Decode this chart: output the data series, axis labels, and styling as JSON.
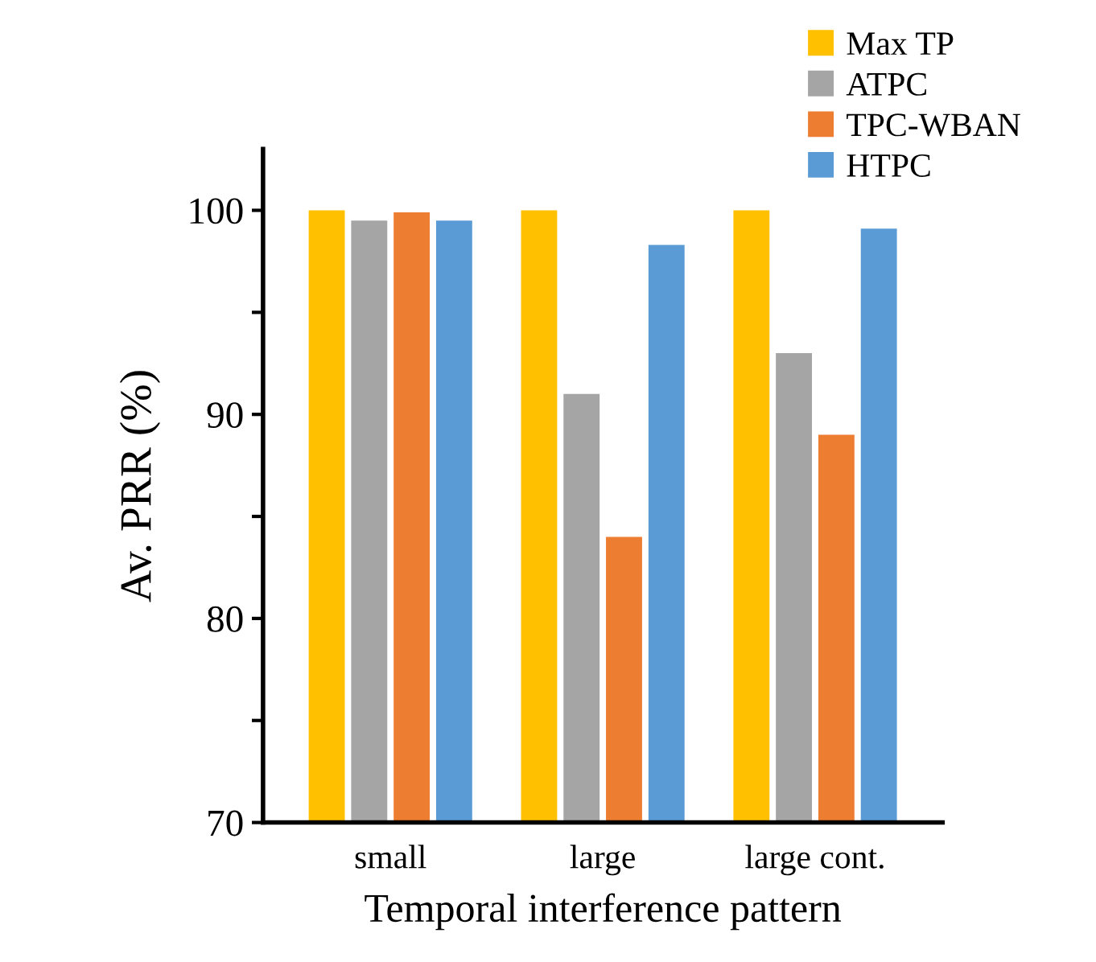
{
  "chart_data": {
    "type": "bar",
    "xlabel": "Temporal interference pattern",
    "ylabel": "Av. PRR (%)",
    "categories": [
      "small",
      "large",
      "large cont."
    ],
    "series": [
      {
        "name": "Max TP",
        "color": "#ffc000",
        "values": [
          100,
          100,
          100
        ]
      },
      {
        "name": "ATPC",
        "color": "#a5a5a5",
        "values": [
          99.5,
          91,
          93
        ]
      },
      {
        "name": "TPC-WBAN",
        "color": "#ed7d31",
        "values": [
          99.9,
          84,
          89
        ]
      },
      {
        "name": "HTPC",
        "color": "#5b9bd5",
        "values": [
          99.5,
          98.3,
          99.1
        ]
      }
    ],
    "ylim": [
      70,
      103
    ],
    "yticks": [
      70,
      {
        "value": 75,
        "label": null
      },
      80,
      {
        "value": 85,
        "label": null
      },
      90,
      {
        "value": 95,
        "label": null
      },
      100
    ],
    "grid": false,
    "legend": "top right"
  }
}
